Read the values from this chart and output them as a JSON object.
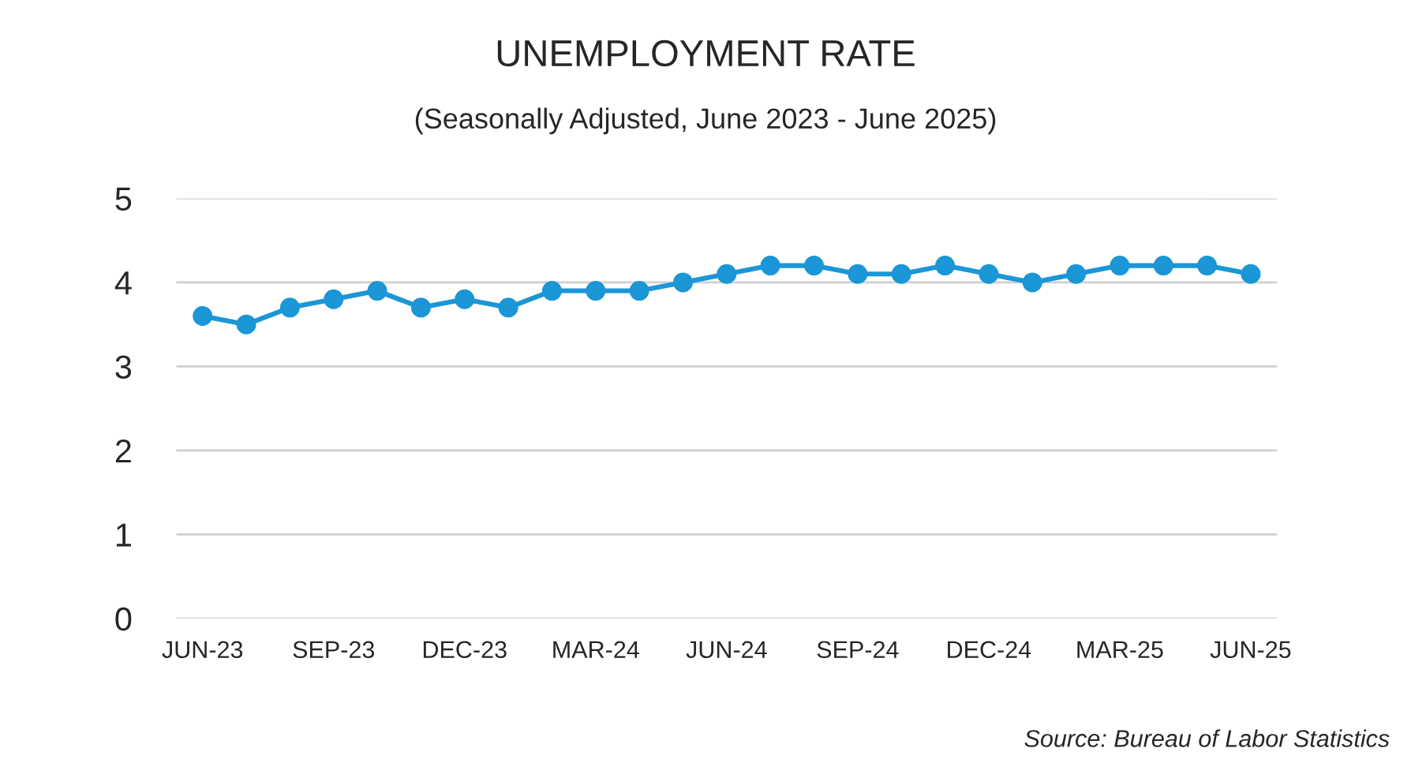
{
  "chart_data": {
    "type": "line",
    "title": "UNEMPLOYMENT RATE",
    "subtitle": "(Seasonally Adjusted, June 2023 - June 2025)",
    "categories": [
      "JUN-23",
      null,
      null,
      "SEP-23",
      null,
      null,
      "DEC-23",
      null,
      null,
      "MAR-24",
      null,
      null,
      "JUN-24",
      null,
      null,
      "SEP-24",
      null,
      null,
      "DEC-24",
      null,
      null,
      "MAR-25",
      null,
      null,
      "JUN-25"
    ],
    "series": [
      {
        "color": "#1b96d6",
        "values": [
          3.6,
          3.5,
          3.7,
          3.8,
          3.9,
          3.7,
          3.8,
          3.7,
          3.9,
          3.9,
          3.9,
          4.0,
          4.1,
          4.2,
          4.2,
          4.1,
          4.1,
          4.2,
          4.1,
          4.0,
          4.1,
          4.2,
          4.2,
          4.2,
          4.1
        ]
      }
    ],
    "ylim": [
      0,
      5
    ],
    "yticks": [
      0,
      1,
      2,
      3,
      4,
      5
    ],
    "grid": "y",
    "marker": "circle",
    "line_style": "solid",
    "legend": false,
    "annotations": [
      "Source: Bureau of Labor Statistics"
    ]
  }
}
